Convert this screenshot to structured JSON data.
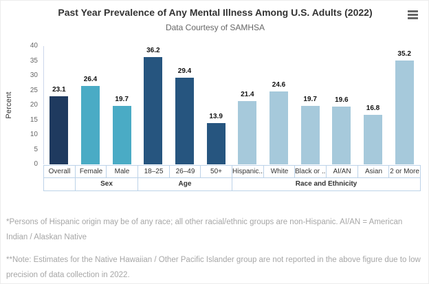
{
  "header": {
    "title": "Past Year Prevalence of Any Mental Illness Among U.S. Adults (2022)",
    "subtitle": "Data Courtesy of SAMHSA",
    "menu_icon": "hamburger-menu-icon"
  },
  "chart_data": {
    "type": "bar",
    "title": "Past Year Prevalence of Any Mental Illness Among U.S. Adults (2022)",
    "subtitle": "Data Courtesy of SAMHSA",
    "xlabel": "",
    "ylabel": "Percent",
    "ylim": [
      0,
      40
    ],
    "yticks": [
      0,
      5,
      10,
      15,
      20,
      25,
      30,
      35,
      40
    ],
    "grid": false,
    "legend": false,
    "categories": [
      "Overall",
      "Female",
      "Male",
      "18–25",
      "26–49",
      "50+",
      "Hispanic...",
      "White",
      "Black or ...",
      "AI/AN",
      "Asian",
      "2 or More"
    ],
    "values": [
      23.1,
      26.4,
      19.7,
      36.2,
      29.4,
      13.9,
      21.4,
      24.6,
      19.7,
      19.6,
      16.8,
      35.2
    ],
    "bar_colors": [
      "#1f3a5f",
      "#4aabc5",
      "#4aabc5",
      "#26557f",
      "#26557f",
      "#26557f",
      "#a6c9db",
      "#a6c9db",
      "#a6c9db",
      "#a6c9db",
      "#a6c9db",
      "#a6c9db"
    ],
    "category_groups": [
      {
        "label": "",
        "span": 1
      },
      {
        "label": "Sex",
        "span": 2
      },
      {
        "label": "Age",
        "span": 3
      },
      {
        "label": "Race and Ethnicity",
        "span": 6
      }
    ],
    "colors": {
      "overall": "#1f3a5f",
      "sex": "#4aabc5",
      "age": "#26557f",
      "race_ethnicity": "#a6c9db"
    }
  },
  "footnotes": [
    "*Persons of Hispanic origin may be of any race; all other racial/ethnic groups are non-Hispanic. AI/AN = American Indian / Alaskan Native",
    "**Note: Estimates for the Native Hawaiian / Other Pacific Islander group are not reported in the above figure due to low precision of data collection in 2022."
  ]
}
